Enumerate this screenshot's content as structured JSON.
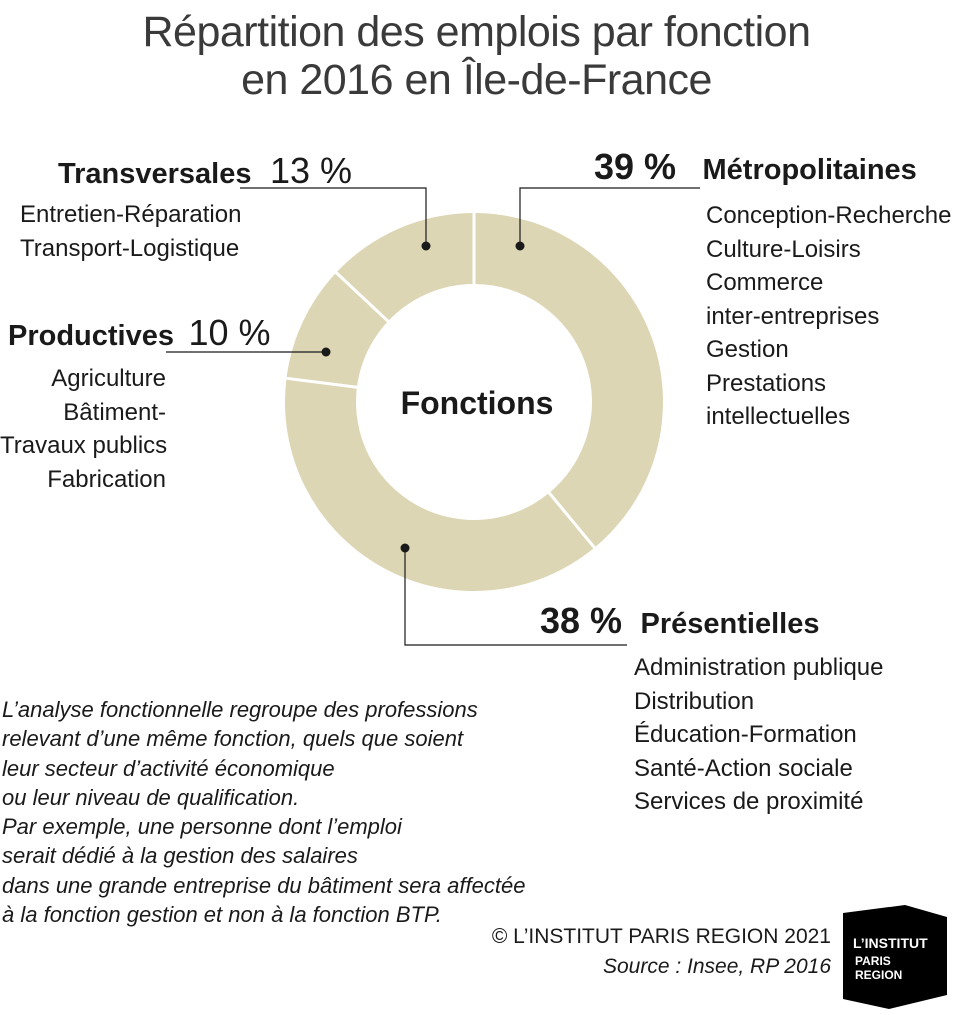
{
  "title_line1": "Répartition des emplois par fonction",
  "title_line2": "en 2016 en Île-de-France",
  "center_label": "Fonctions",
  "categories": {
    "metropolitaines": {
      "name": "Métropolitaines",
      "pct": "39 %",
      "items": [
        "Conception-Recherche",
        "Culture-Loisirs",
        "Commerce",
        "inter-entreprises",
        "Gestion",
        "Prestations",
        "intellectuelles"
      ]
    },
    "presentielles": {
      "name": "Présentielles",
      "pct": "38 %",
      "items": [
        "Administration publique",
        "Distribution",
        "Éducation-Formation",
        "Santé-Action sociale",
        "Services de proximité"
      ]
    },
    "productives": {
      "name": "Productives",
      "pct": "10 %",
      "items": [
        "Agriculture",
        "Bâtiment-",
        "Travaux publics",
        "Fabrication"
      ]
    },
    "transversales": {
      "name": "Transversales",
      "pct": "13 %",
      "items": [
        "Entretien-Réparation",
        "Transport-Logistique"
      ]
    }
  },
  "note_lines": [
    "L’analyse fonctionnelle regroupe des professions",
    "relevant d’une même fonction, quels que soient",
    "leur secteur d’activité économique",
    "ou leur niveau de qualification.",
    "Par exemple, une personne dont l’emploi",
    "serait dédié à la gestion des salaires",
    "dans une grande entreprise du bâtiment sera affectée",
    "à la fonction gestion et non à la fonction BTP."
  ],
  "credit": "© L’INSTITUT PARIS REGION 2021",
  "source": "Source : Insee, RP 2016",
  "logo": {
    "line1": "L’INSTITUT",
    "line2": "PARIS",
    "line3": "REGION"
  },
  "colors": {
    "donut": "#ddd6b4",
    "separator": "#ffffff",
    "leader": "#1a1a1a",
    "logo_bg": "#000000"
  },
  "chart_data": {
    "type": "pie",
    "donut": true,
    "title": "Répartition des emplois par fonction en 2016 en Île-de-France",
    "categories": [
      "Métropolitaines",
      "Présentielles",
      "Productives",
      "Transversales"
    ],
    "values": [
      39,
      38,
      10,
      13
    ],
    "unit": "%",
    "center_label": "Fonctions"
  }
}
